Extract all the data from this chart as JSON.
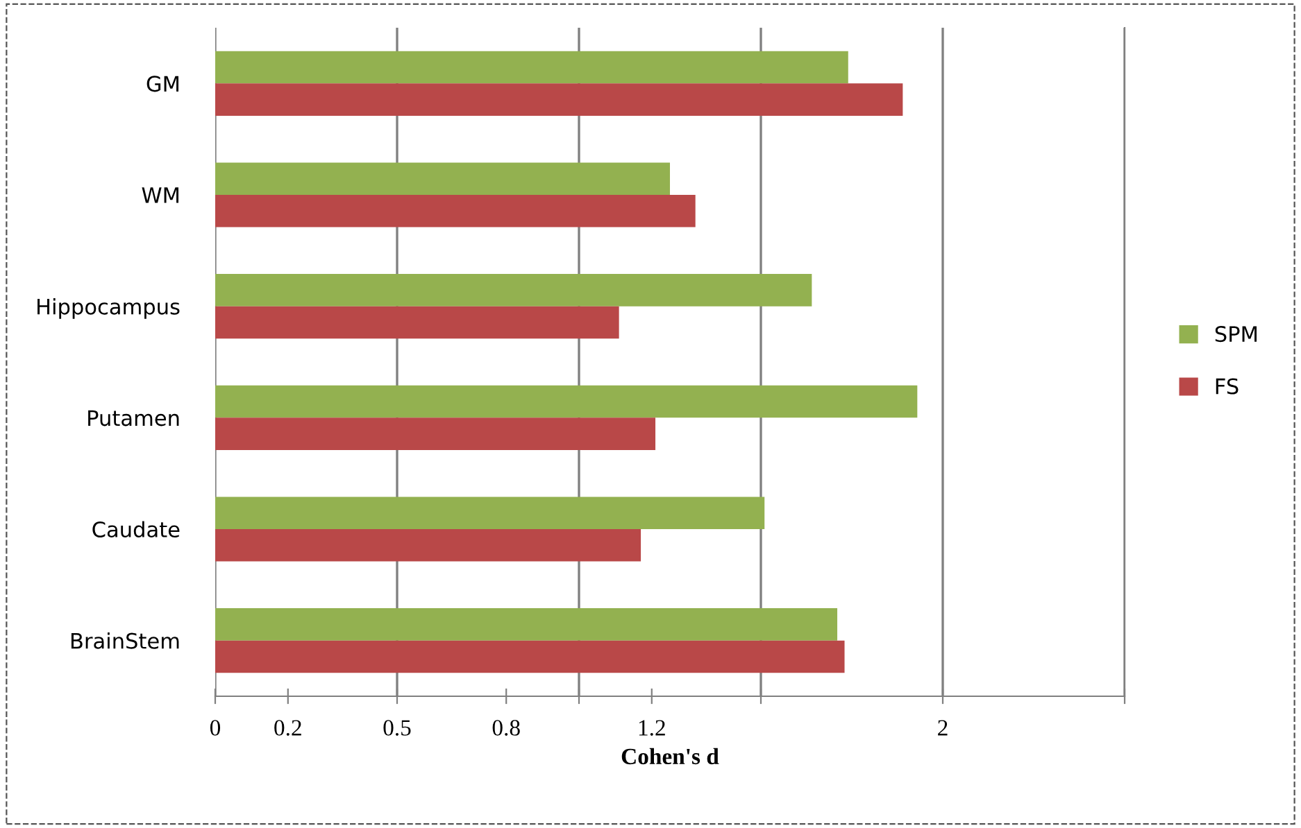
{
  "chart_data": {
    "type": "bar",
    "orientation": "horizontal",
    "xlabel": "Cohen's d",
    "categories": [
      "GM",
      "WM",
      "Hippocampus",
      "Putamen",
      "Caudate",
      "BrainStem"
    ],
    "series": [
      {
        "name": "SPM",
        "color": "#93b150",
        "values": [
          1.74,
          1.25,
          1.64,
          1.93,
          1.51,
          1.71
        ]
      },
      {
        "name": "FS",
        "color": "#b94848",
        "values": [
          1.89,
          1.32,
          1.11,
          1.21,
          1.17,
          1.73
        ]
      }
    ],
    "xlim": [
      0,
      2.5
    ],
    "xticks": [
      0,
      0.2,
      0.5,
      0.8,
      {
        "value": 1.0,
        "label": null
      },
      1.2,
      {
        "value": 1.5,
        "label": null
      },
      2,
      {
        "value": 2.5,
        "label": null
      }
    ],
    "grid": "x",
    "legend": "right"
  }
}
